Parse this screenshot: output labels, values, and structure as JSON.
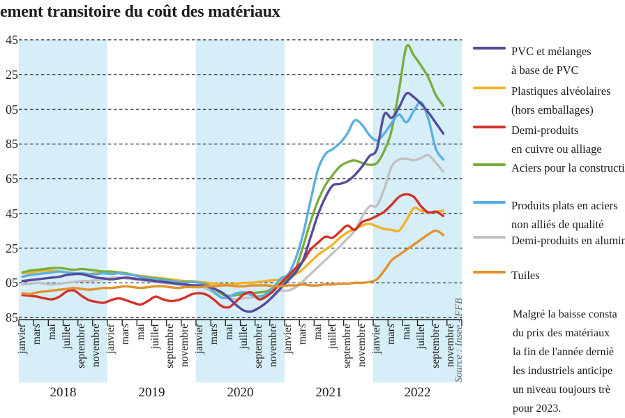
{
  "title": "ement transitoire du coût des matériaux",
  "source": "Source : Insee - FFB",
  "colors": {
    "band": "#d6eef8",
    "grid": "#1a1a1a",
    "axis": "#1a1a1a",
    "text": "#1d1d1b",
    "source_text": "#6d6d6d"
  },
  "y_axis": {
    "visible_labels": [
      "45",
      "25",
      "05",
      "85",
      "65",
      "45",
      "25",
      "05",
      "85"
    ]
  },
  "x_axis": {
    "month_labels": [
      "janvier",
      "mars",
      "mai",
      "juillet",
      "septembre",
      "novembre"
    ],
    "years": [
      {
        "label": "2018",
        "shaded": true
      },
      {
        "label": "2019",
        "shaded": false
      },
      {
        "label": "2020",
        "shaded": true
      },
      {
        "label": "2021",
        "shaded": false
      },
      {
        "label": "2022",
        "shaded": true
      }
    ]
  },
  "legend": {
    "items": [
      {
        "lines": [
          "PVC et mélanges",
          "à base de PVC"
        ],
        "color": "#564a9d"
      },
      {
        "lines": [
          "Plastiques alvéolaires",
          "(hors emballages)"
        ],
        "color": "#f0b32a"
      },
      {
        "lines": [
          "Demi-produits",
          "en cuivre ou alliage"
        ],
        "color": "#d2332b"
      },
      {
        "lines": [
          "Aciers pour la construction"
        ],
        "color": "#7bad3c"
      },
      {
        "lines": [
          "Produits plats en aciers",
          "non alliés de qualité"
        ],
        "color": "#5aafe0"
      },
      {
        "lines": [
          "Demi-produits en aluminium"
        ],
        "color": "#c2c2c2"
      },
      {
        "lines": [
          "Tuiles"
        ],
        "color": "#e2922f"
      }
    ]
  },
  "note": {
    "lines": [
      "Malgré la baisse consta",
      "du prix des matériaux",
      "la fin de l'année derniè",
      "les industriels anticipe",
      "un niveau toujours trè",
      "pour 2023."
    ]
  },
  "chart_data": {
    "type": "line",
    "title": "ement transitoire du coût des matériaux",
    "x_start": "2018-01",
    "x_end": "2022-10",
    "frequency": "monthly",
    "ylim": [
      85,
      245
    ],
    "ytick_step": 20,
    "grid": "horizontal-dashed",
    "shaded_year_bands": [
      "2018",
      "2020",
      "2022"
    ],
    "legend_position": "right",
    "series": [
      {
        "name": "PVC et mélanges à base de PVC",
        "color": "#564a9d",
        "values": [
          106,
          106.5,
          107,
          107.5,
          108,
          108.5,
          109.5,
          110,
          110,
          109,
          108,
          107.5,
          107,
          107.5,
          108,
          107.5,
          107,
          106.5,
          106,
          105.5,
          105,
          104.5,
          104,
          103.5,
          103.5,
          103,
          101.5,
          99.5,
          96,
          92,
          89,
          88.5,
          90.5,
          93.5,
          97.5,
          102,
          106.5,
          111,
          118,
          131,
          144,
          154,
          161,
          162,
          163.5,
          167,
          172,
          178,
          182,
          202,
          200,
          206,
          214,
          212,
          208,
          203,
          197,
          191
        ]
      },
      {
        "name": "Plastiques alvéolaires (hors emballages)",
        "color": "#f0b32a",
        "values": [
          110.5,
          111,
          111.5,
          112,
          112,
          111.5,
          111,
          110.5,
          110,
          110,
          110.5,
          111,
          111,
          110.5,
          110,
          109.5,
          109,
          108.5,
          108,
          107.5,
          107,
          106.5,
          106,
          106,
          105.5,
          105,
          104.5,
          104,
          104,
          104.5,
          105,
          105,
          105.5,
          106,
          106.5,
          107,
          108,
          110,
          113,
          117,
          121,
          124,
          127,
          131,
          134,
          136,
          138,
          139,
          137.5,
          136,
          135.5,
          135,
          141,
          148,
          146.5,
          145.5,
          146,
          146.5
        ]
      },
      {
        "name": "Demi-produits en cuivre ou alliage",
        "color": "#d2332b",
        "values": [
          98,
          97.5,
          97,
          96,
          95.5,
          97,
          100,
          100.5,
          97.5,
          95,
          94,
          93.5,
          95,
          96,
          95,
          93.5,
          92.5,
          94.5,
          97,
          95.5,
          94.5,
          95,
          96.5,
          98.5,
          99,
          98,
          95,
          91.5,
          91,
          94.5,
          98.5,
          99.5,
          95.5,
          97,
          100.5,
          105,
          109,
          113.5,
          117.5,
          124,
          128,
          131.5,
          131,
          134.5,
          138,
          135.5,
          140,
          141.5,
          143.5,
          146,
          150,
          154.5,
          156,
          154.5,
          149,
          145.5,
          146,
          143.5
        ]
      },
      {
        "name": "Aciers pour la construction",
        "color": "#7bad3c",
        "values": [
          111,
          112,
          112.5,
          113,
          113.5,
          113.5,
          113,
          112.5,
          113,
          112.5,
          112,
          111.5,
          111.5,
          111,
          110.5,
          109.5,
          108.5,
          108,
          107.5,
          107,
          106.5,
          105.5,
          105.5,
          105.5,
          105,
          104,
          101.5,
          98.5,
          97.5,
          98,
          98.5,
          99,
          99.5,
          100,
          102,
          104,
          107.5,
          113,
          126,
          140,
          152,
          161,
          167,
          172,
          174.5,
          175.5,
          174,
          173,
          174,
          181,
          193,
          216,
          241,
          236,
          230,
          223,
          213,
          207
        ]
      },
      {
        "name": "Produits plats en aciers non alliés de qualité",
        "color": "#5aafe0",
        "values": [
          108.5,
          109.5,
          110,
          110.5,
          111,
          111.5,
          111,
          110.5,
          110.5,
          110,
          110,
          110.5,
          110,
          110.5,
          110,
          109.5,
          108.5,
          107.5,
          107,
          106.5,
          106,
          105.5,
          105,
          105.5,
          105,
          103,
          99.5,
          96.5,
          97,
          99,
          99.5,
          98,
          97,
          98.5,
          102.5,
          107.5,
          110,
          119,
          133,
          152,
          170,
          179,
          182,
          185.5,
          191,
          198.5,
          196,
          190,
          187,
          191,
          197,
          202,
          197.5,
          204,
          209,
          199,
          182,
          176
        ]
      },
      {
        "name": "Demi-produits en aluminium",
        "color": "#c2c2c2",
        "values": [
          104,
          104.5,
          105,
          104.5,
          104,
          104.5,
          105,
          105.5,
          106,
          106,
          106.5,
          107,
          108,
          108,
          107.5,
          107,
          106.5,
          106,
          105.5,
          105,
          104.5,
          104,
          103.5,
          103.5,
          103,
          101.5,
          99,
          96.5,
          96,
          95.5,
          96,
          96.5,
          97,
          98,
          99.5,
          100.5,
          100.5,
          102.5,
          106,
          110,
          114,
          118,
          122,
          126,
          130.5,
          135,
          143,
          149,
          149.5,
          159,
          172,
          176,
          176.5,
          175.5,
          177,
          178.5,
          174,
          169
        ]
      },
      {
        "name": "Tuiles",
        "color": "#e2922f",
        "values": [
          99,
          98.5,
          99.5,
          100,
          100.5,
          101,
          101.5,
          102,
          101.5,
          101,
          101.5,
          102,
          102,
          102.5,
          103,
          102.5,
          102,
          102.5,
          103,
          103,
          102.5,
          102,
          102.5,
          102.5,
          102.5,
          103,
          103,
          103.5,
          103.5,
          103,
          103,
          103.5,
          103.5,
          103.5,
          103,
          103,
          103.5,
          103.5,
          104,
          103.5,
          103.5,
          104,
          104,
          104.5,
          104.5,
          105,
          105,
          105.5,
          107,
          112,
          118,
          121,
          124,
          127,
          130,
          133,
          135,
          132.5
        ]
      }
    ]
  }
}
